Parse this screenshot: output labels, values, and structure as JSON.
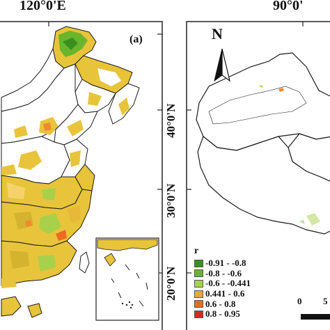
{
  "left_map": {
    "panel_label": "(a)",
    "top_longitude": "120°0'E",
    "latitudes": [
      "40°0'N",
      "30°0'N",
      "20°0'N"
    ]
  },
  "right_map": {
    "top_longitude": "90°0'",
    "latitudes": [
      "40°0'N",
      "30°0'N",
      "20°0'N"
    ],
    "north_arrow": "N",
    "scale_labels": [
      "0",
      "5"
    ]
  },
  "legend": {
    "title": "r",
    "items": [
      {
        "label": "-0.91 - -0.8",
        "color": "#3a8f1e"
      },
      {
        "label": "-0.8 - -0.6",
        "color": "#6bb52c"
      },
      {
        "label": "-0.6 - -0.441",
        "color": "#a9d04a"
      },
      {
        "label": "0.441 - 0.6",
        "color": "#f6a33b"
      },
      {
        "label": "0.6 - 0.8",
        "color": "#ef6a22"
      },
      {
        "label": "0.8 - 0.95",
        "color": "#e0261b"
      }
    ]
  },
  "colors": {
    "yellow_fill": "#e8c43a",
    "green_fill": "#7fb93a",
    "orange_fill": "#ef8a2e",
    "border": "#1a1a1a"
  }
}
